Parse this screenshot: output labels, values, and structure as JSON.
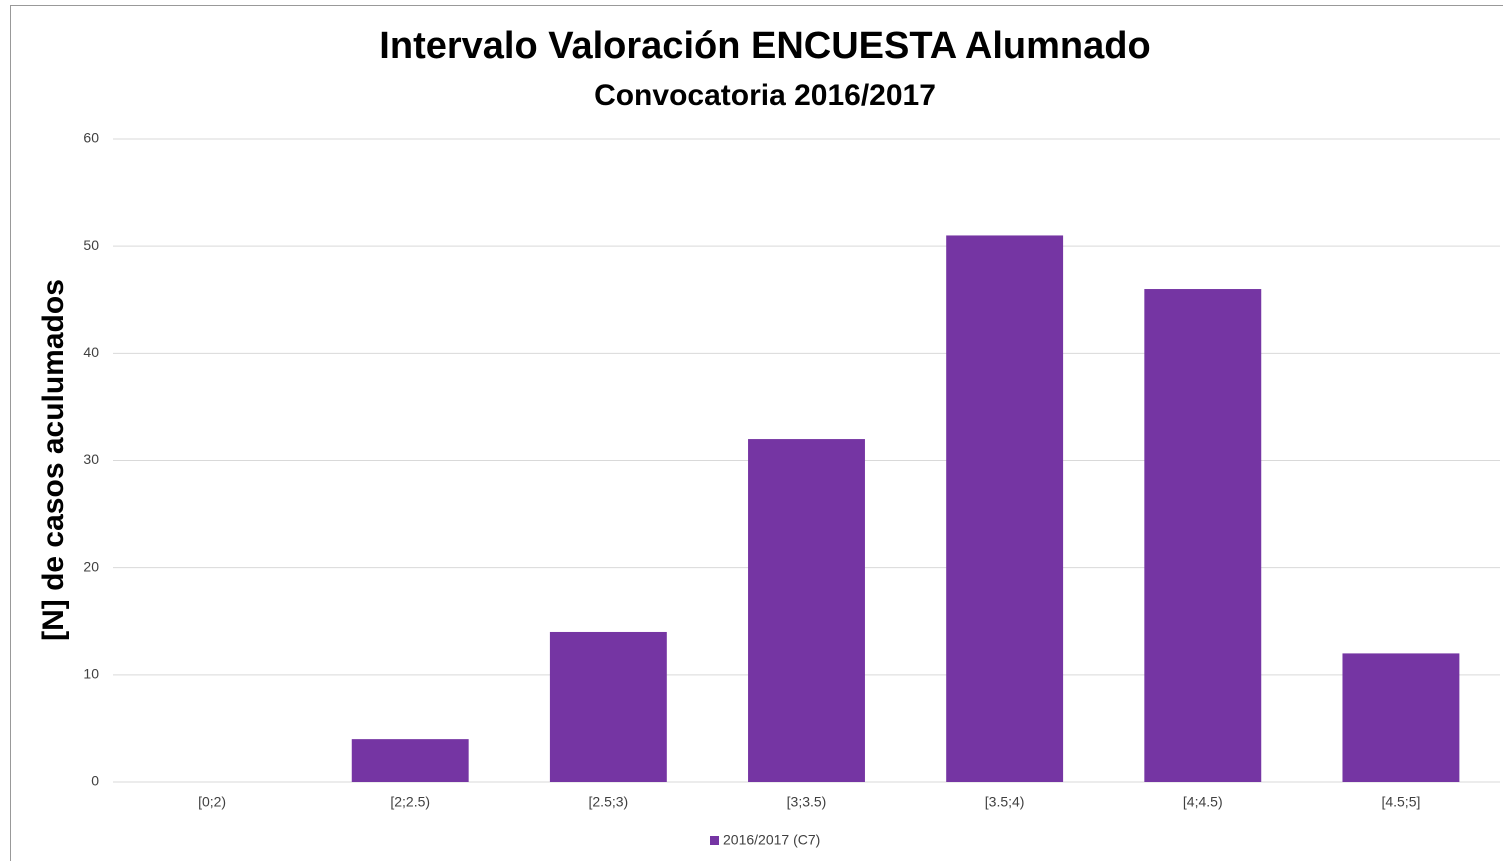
{
  "chart_data": {
    "type": "bar",
    "title": "Intervalo Valoración ENCUESTA Alumnado",
    "subtitle": "Convocatoria 2016/2017",
    "y_label": "[N] de casos aculumados",
    "categories": [
      "[0;2)",
      "[2;2.5)",
      "[2.5;3)",
      "[3;3.5)",
      "[3.5;4)",
      "[4;4.5)",
      "[4.5;5]"
    ],
    "series": [
      {
        "name": "2016/2017 (C7)",
        "color": "#7535a3",
        "values": [
          0,
          4,
          14,
          32,
          51,
          46,
          12
        ]
      }
    ],
    "ylim": [
      0,
      60
    ],
    "yticks": [
      0,
      10,
      20,
      30,
      40,
      50,
      60
    ],
    "grid": true,
    "legend": "bottom"
  }
}
